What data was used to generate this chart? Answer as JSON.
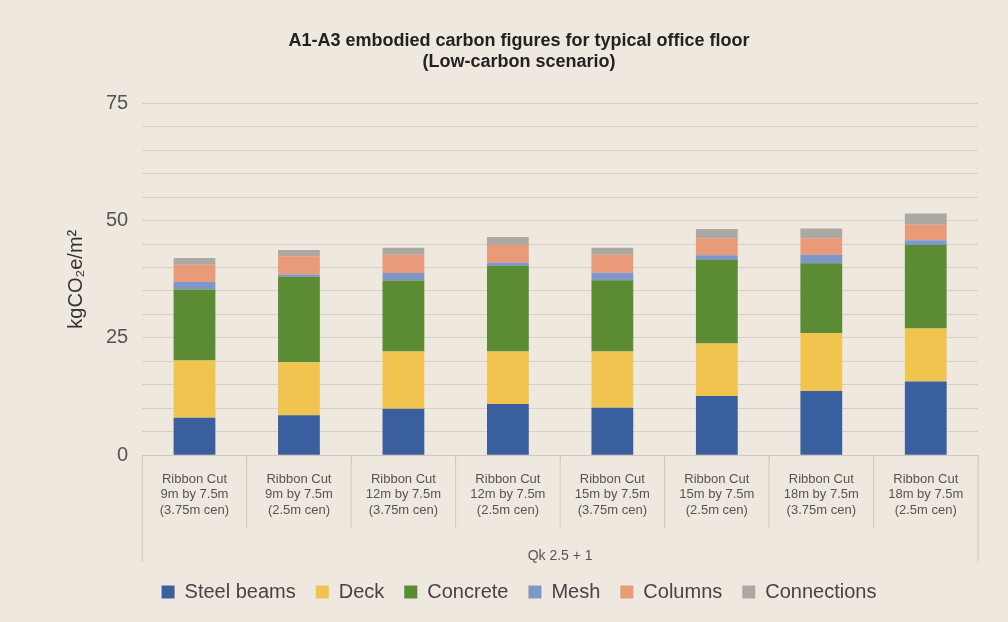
{
  "chart_data": {
    "type": "bar",
    "stacked": true,
    "title": "A1-A3 embodied carbon figures for typical office floor\n(Low-carbon scenario)",
    "ylabel": "kgCO₂e/m²",
    "xlabel": "Qk 2.5 + 1",
    "categories": [
      "Ribbon Cut\n9m by 7.5m\n(3.75m cen)",
      "Ribbon Cut\n9m by 7.5m\n(2.5m cen)",
      "Ribbon Cut\n12m by 7.5m\n(3.75m cen)",
      "Ribbon Cut\n12m by 7.5m\n(2.5m cen)",
      "Ribbon Cut\n15m by 7.5m\n(3.75m cen)",
      "Ribbon Cut\n15m by 7.5m\n(2.5m cen)",
      "Ribbon Cut\n18m by 7.5m\n(3.75m cen)",
      "Ribbon Cut\n18m by 7.5m\n(2.5m cen)"
    ],
    "series": [
      {
        "name": "Steel beams",
        "color": "#3a5f9e",
        "values": [
          8.0,
          8.5,
          9.9,
          10.9,
          10.1,
          12.6,
          13.7,
          15.7
        ]
      },
      {
        "name": "Deck",
        "color": "#f0c44f",
        "values": [
          12.2,
          11.3,
          12.2,
          11.2,
          12.0,
          11.2,
          12.3,
          11.3
        ]
      },
      {
        "name": "Concrete",
        "color": "#5b8b33",
        "values": [
          15.1,
          18.2,
          15.1,
          18.2,
          15.2,
          17.8,
          14.9,
          17.8
        ]
      },
      {
        "name": "Mesh",
        "color": "#7f96c9",
        "values": [
          1.6,
          0.5,
          1.6,
          0.7,
          1.6,
          1.0,
          1.8,
          1.0
        ]
      },
      {
        "name": "Columns",
        "color": "#e99a78",
        "values": [
          3.7,
          3.9,
          3.9,
          3.8,
          3.8,
          3.6,
          3.5,
          3.3
        ]
      },
      {
        "name": "Connections",
        "color": "#aca8a2",
        "values": [
          1.4,
          1.3,
          1.5,
          1.7,
          1.5,
          2.0,
          2.1,
          2.4
        ]
      }
    ],
    "ylim": [
      0,
      75
    ],
    "yticks": [
      0,
      {
        "value": 5,
        "label": null
      },
      {
        "value": 10,
        "label": null
      },
      {
        "value": 15,
        "label": null
      },
      {
        "value": 20,
        "label": null
      },
      25,
      {
        "value": 30,
        "label": null
      },
      {
        "value": 35,
        "label": null
      },
      {
        "value": 40,
        "label": null
      },
      {
        "value": 45,
        "label": null
      },
      50,
      {
        "value": 55,
        "label": null
      },
      {
        "value": 60,
        "label": null
      },
      {
        "value": 65,
        "label": null
      },
      {
        "value": 70,
        "label": null
      },
      75
    ],
    "grid": "y",
    "legend": "bottom"
  }
}
